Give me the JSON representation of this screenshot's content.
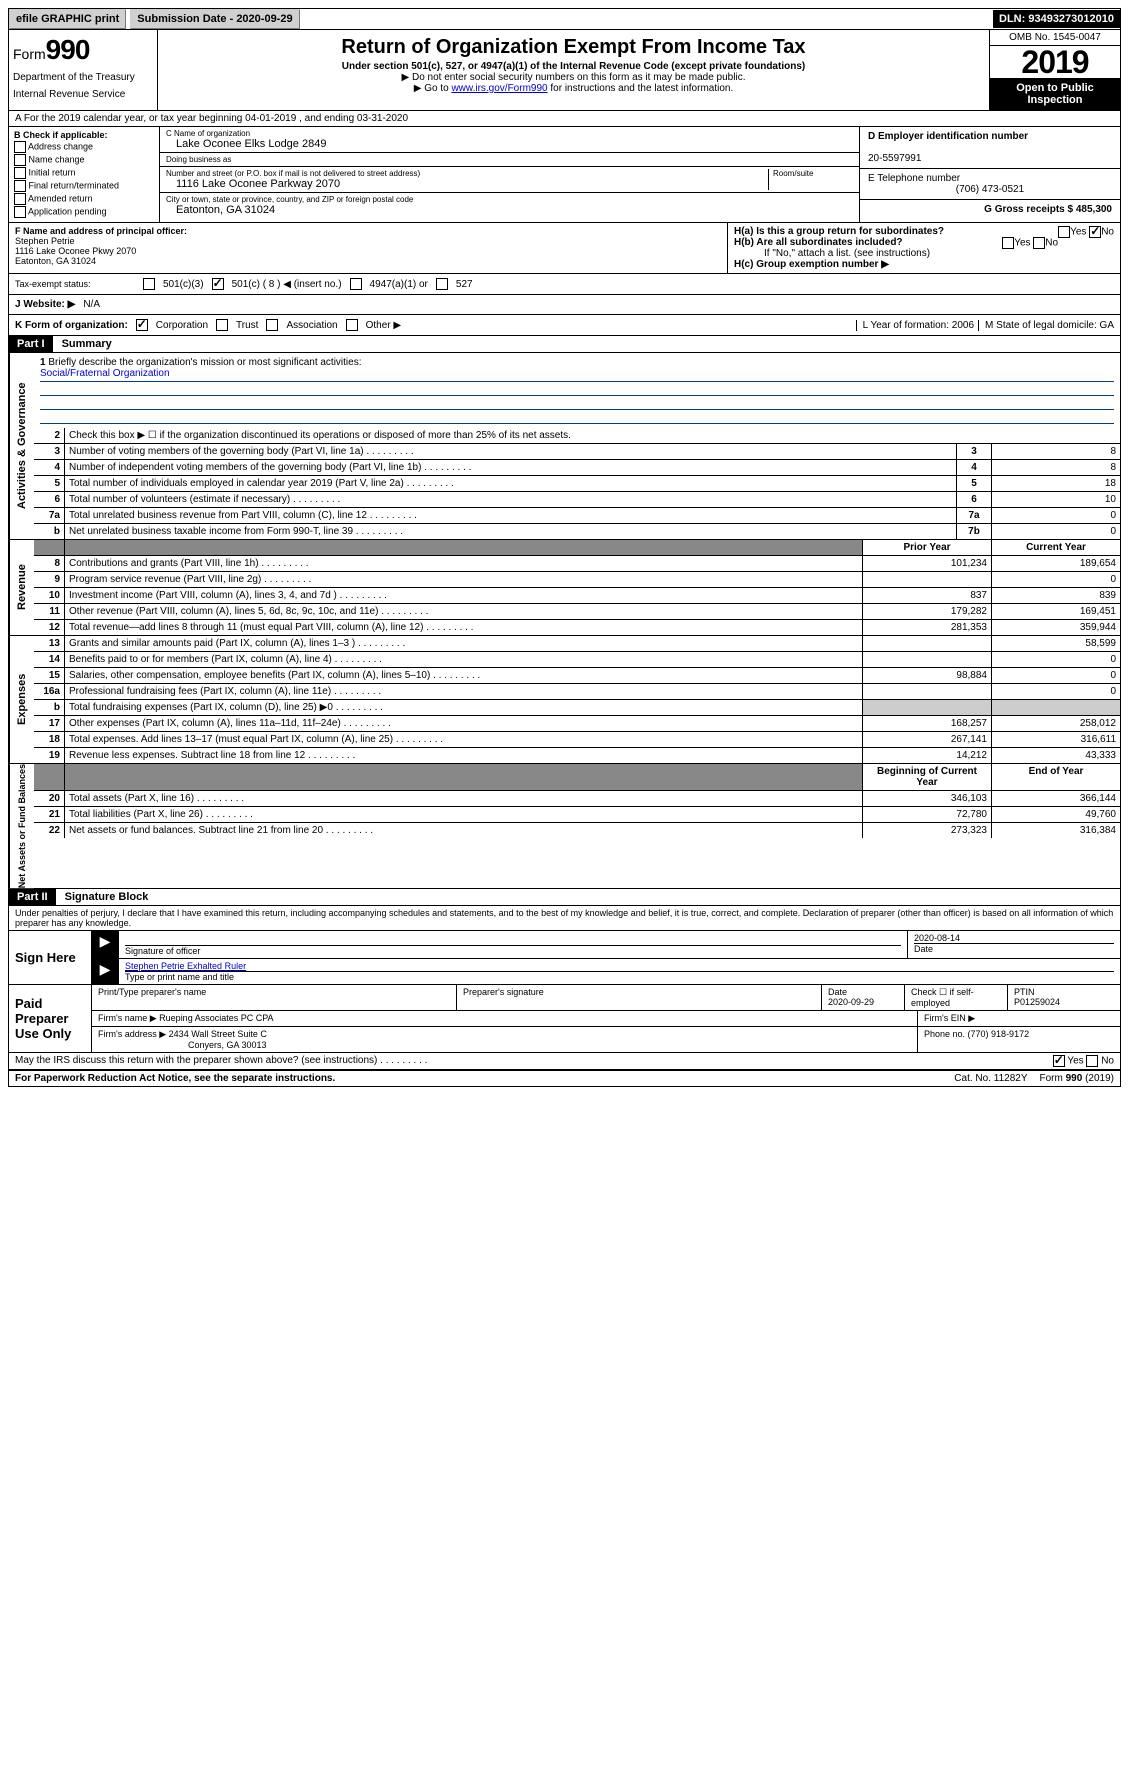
{
  "topbar": {
    "efile": "efile GRAPHIC print",
    "submission_label": "Submission Date - 2020-09-29",
    "dln": "DLN: 93493273012010"
  },
  "header": {
    "form_word": "Form",
    "form_num": "990",
    "title": "Return of Organization Exempt From Income Tax",
    "subtitle": "Under section 501(c), 527, or 4947(a)(1) of the Internal Revenue Code (except private foundations)",
    "note1": "▶ Do not enter social security numbers on this form as it may be made public.",
    "note2_pre": "▶ Go to ",
    "note2_link": "www.irs.gov/Form990",
    "note2_post": " for instructions and the latest information.",
    "dept1": "Department of the Treasury",
    "dept2": "Internal Revenue Service",
    "omb": "OMB No. 1545-0047",
    "year": "2019",
    "open": "Open to Public Inspection"
  },
  "row_a": "A For the 2019 calendar year, or tax year beginning 04-01-2019    , and ending 03-31-2020",
  "col_b": {
    "header": "B Check if applicable:",
    "items": [
      "Address change",
      "Name change",
      "Initial return",
      "Final return/terminated",
      "Amended return",
      "Application pending"
    ]
  },
  "col_c": {
    "name_label": "C Name of organization",
    "name": "Lake Oconee Elks Lodge 2849",
    "dba_label": "Doing business as",
    "dba": "",
    "addr_label": "Number and street (or P.O. box if mail is not delivered to street address)",
    "room_label": "Room/suite",
    "addr": "1116 Lake Oconee Parkway 2070",
    "city_label": "City or town, state or province, country, and ZIP or foreign postal code",
    "city": "Eatonton, GA  31024"
  },
  "col_right": {
    "ein_label": "D Employer identification number",
    "ein": "20-5597991",
    "tel_label": "E Telephone number",
    "tel": "(706) 473-0521",
    "gross_label": "G Gross receipts $ 485,300"
  },
  "principal": {
    "label": "F  Name and address of principal officer:",
    "name": "Stephen Petrie",
    "addr1": "1116 Lake Oconee Pkwy 2070",
    "addr2": "Eatonton, GA  31024",
    "ha": "H(a)  Is this a group return for subordinates?",
    "ha_yes": "Yes",
    "ha_no": "No",
    "hb": "H(b)  Are all subordinates included?",
    "hb_yes": "Yes",
    "hb_no": "No",
    "hb_note": "If \"No,\" attach a list. (see instructions)",
    "hc": "H(c)  Group exemption number ▶"
  },
  "tax_row": {
    "label": "Tax-exempt status:",
    "c3": "501(c)(3)",
    "c": "501(c) ( 8 ) ◀ (insert no.)",
    "a1": "4947(a)(1) or",
    "s527": "527"
  },
  "website_row": {
    "label": "J   Website: ▶",
    "val": "N/A"
  },
  "k_row": {
    "label": "K Form of organization:",
    "corp": "Corporation",
    "trust": "Trust",
    "assoc": "Association",
    "other": "Other ▶",
    "l_label": "L Year of formation: 2006",
    "m_label": "M State of legal domicile: GA"
  },
  "part1_label": "Part I",
  "part1_title": "Summary",
  "sections": {
    "activities": {
      "label": "Activities & Governance",
      "briefly_num": "1",
      "briefly": "Briefly describe the organization's mission or most significant activities:",
      "briefly_val": "Social/Fraternal Organization",
      "rows": [
        {
          "n": "2",
          "d": "Check this box ▶ ☐  if the organization discontinued its operations or disposed of more than 25% of its net assets.",
          "box": "",
          "v": ""
        },
        {
          "n": "3",
          "d": "Number of voting members of the governing body (Part VI, line 1a)",
          "box": "3",
          "v": "8"
        },
        {
          "n": "4",
          "d": "Number of independent voting members of the governing body (Part VI, line 1b)",
          "box": "4",
          "v": "8"
        },
        {
          "n": "5",
          "d": "Total number of individuals employed in calendar year 2019 (Part V, line 2a)",
          "box": "5",
          "v": "18"
        },
        {
          "n": "6",
          "d": "Total number of volunteers (estimate if necessary)",
          "box": "6",
          "v": "10"
        },
        {
          "n": "7a",
          "d": "Total unrelated business revenue from Part VIII, column (C), line 12",
          "box": "7a",
          "v": "0"
        },
        {
          "n": "b",
          "d": "Net unrelated business taxable income from Form 990-T, line 39",
          "box": "7b",
          "v": "0"
        }
      ]
    },
    "revenue": {
      "label": "Revenue",
      "head_prior": "Prior Year",
      "head_current": "Current Year",
      "rows": [
        {
          "n": "8",
          "d": "Contributions and grants (Part VIII, line 1h)",
          "p": "101,234",
          "c": "189,654"
        },
        {
          "n": "9",
          "d": "Program service revenue (Part VIII, line 2g)",
          "p": "",
          "c": "0"
        },
        {
          "n": "10",
          "d": "Investment income (Part VIII, column (A), lines 3, 4, and 7d )",
          "p": "837",
          "c": "839"
        },
        {
          "n": "11",
          "d": "Other revenue (Part VIII, column (A), lines 5, 6d, 8c, 9c, 10c, and 11e)",
          "p": "179,282",
          "c": "169,451"
        },
        {
          "n": "12",
          "d": "Total revenue—add lines 8 through 11 (must equal Part VIII, column (A), line 12)",
          "p": "281,353",
          "c": "359,944"
        }
      ]
    },
    "expenses": {
      "label": "Expenses",
      "rows": [
        {
          "n": "13",
          "d": "Grants and similar amounts paid (Part IX, column (A), lines 1–3 )",
          "p": "",
          "c": "58,599"
        },
        {
          "n": "14",
          "d": "Benefits paid to or for members (Part IX, column (A), line 4)",
          "p": "",
          "c": "0"
        },
        {
          "n": "15",
          "d": "Salaries, other compensation, employee benefits (Part IX, column (A), lines 5–10)",
          "p": "98,884",
          "c": "0"
        },
        {
          "n": "16a",
          "d": "Professional fundraising fees (Part IX, column (A), line 11e)",
          "p": "",
          "c": "0"
        },
        {
          "n": "b",
          "d": "Total fundraising expenses (Part IX, column (D), line 25) ▶0",
          "p": "__SHADE__",
          "c": "__SHADE__"
        },
        {
          "n": "17",
          "d": "Other expenses (Part IX, column (A), lines 11a–11d, 11f–24e)",
          "p": "168,257",
          "c": "258,012"
        },
        {
          "n": "18",
          "d": "Total expenses. Add lines 13–17 (must equal Part IX, column (A), line 25)",
          "p": "267,141",
          "c": "316,611"
        },
        {
          "n": "19",
          "d": "Revenue less expenses. Subtract line 18 from line 12",
          "p": "14,212",
          "c": "43,333"
        }
      ]
    },
    "net": {
      "label": "Net Assets or Fund Balances",
      "head_begin": "Beginning of Current Year",
      "head_end": "End of Year",
      "rows": [
        {
          "n": "20",
          "d": "Total assets (Part X, line 16)",
          "p": "346,103",
          "c": "366,144"
        },
        {
          "n": "21",
          "d": "Total liabilities (Part X, line 26)",
          "p": "72,780",
          "c": "49,760"
        },
        {
          "n": "22",
          "d": "Net assets or fund balances. Subtract line 21 from line 20",
          "p": "273,323",
          "c": "316,384"
        }
      ]
    }
  },
  "part2_label": "Part II",
  "part2_title": "Signature Block",
  "perjury": "Under penalties of perjury, I declare that I have examined this return, including accompanying schedules and statements, and to the best of my knowledge and belief, it is true, correct, and complete. Declaration of preparer (other than officer) is based on all information of which preparer has any knowledge.",
  "sign": {
    "label": "Sign Here",
    "sig_label": "Signature of officer",
    "date": "2020-08-14",
    "date_label": "Date",
    "name": "Stephen Petrie Exhalted Ruler",
    "name_label": "Type or print name and title"
  },
  "paid": {
    "label": "Paid Preparer Use Only",
    "print_label": "Print/Type preparer's name",
    "sig_label": "Preparer's signature",
    "date_label": "Date",
    "date": "2020-09-29",
    "check_label": "Check ☐ if self-employed",
    "ptin_label": "PTIN",
    "ptin": "P01259024",
    "firm_name_label": "Firm's name    ▶",
    "firm_name": "Rueping Associates PC CPA",
    "firm_ein_label": "Firm's EIN ▶",
    "firm_addr_label": "Firm's address ▶",
    "firm_addr1": "2434 Wall Street Suite C",
    "firm_addr2": "Conyers, GA  30013",
    "phone_label": "Phone no. (770) 918-9172"
  },
  "discuss": {
    "q": "May the IRS discuss this return with the preparer shown above? (see instructions)",
    "yes": "Yes",
    "no": "No"
  },
  "footer": {
    "left": "For Paperwork Reduction Act Notice, see the separate instructions.",
    "cat": "Cat. No. 11282Y",
    "form": "Form 990 (2019)"
  },
  "colors": {
    "link": "#0000cc",
    "underline": "#004080"
  }
}
